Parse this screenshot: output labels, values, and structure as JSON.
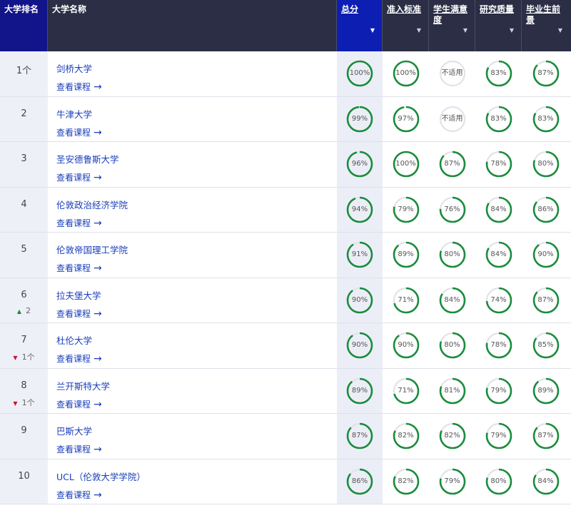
{
  "header": {
    "rank": "大学排名",
    "name": "大学名称",
    "score": "总分",
    "entry": "准入标准",
    "satisfaction": "学生满意度",
    "research": "研究质量",
    "prospects": "毕业生前景"
  },
  "colors": {
    "header_bg": "#2c2e45",
    "active_header": "#0d1fb3",
    "ring": "#1a8c3c",
    "track": "#e2e3e8",
    "link": "#1a3eb8"
  },
  "rows": [
    {
      "rank": "1个",
      "change": "",
      "dir": "",
      "name": "剑桥大学",
      "link": "查看课程",
      "score": "100%",
      "entry": "100%",
      "satisfaction": "不适用",
      "research": "83%",
      "prospects": "87%",
      "v": [
        100,
        100,
        0,
        83,
        87
      ]
    },
    {
      "rank": "2",
      "change": "",
      "dir": "",
      "name": "牛津大学",
      "link": "查看课程",
      "score": "99%",
      "entry": "97%",
      "satisfaction": "不适用",
      "research": "83%",
      "prospects": "83%",
      "v": [
        99,
        97,
        0,
        83,
        83
      ]
    },
    {
      "rank": "3",
      "change": "",
      "dir": "",
      "name": "圣安德鲁斯大学",
      "link": "查看课程",
      "score": "96%",
      "entry": "100%",
      "satisfaction": "87%",
      "research": "78%",
      "prospects": "80%",
      "v": [
        96,
        100,
        87,
        78,
        80
      ]
    },
    {
      "rank": "4",
      "change": "",
      "dir": "",
      "name": "伦敦政治经济学院",
      "link": "查看课程",
      "score": "94%",
      "entry": "79%",
      "satisfaction": "76%",
      "research": "84%",
      "prospects": "86%",
      "v": [
        94,
        79,
        76,
        84,
        86
      ]
    },
    {
      "rank": "5",
      "change": "",
      "dir": "",
      "name": "伦敦帝国理工学院",
      "link": "查看课程",
      "score": "91%",
      "entry": "89%",
      "satisfaction": "80%",
      "research": "84%",
      "prospects": "90%",
      "v": [
        91,
        89,
        80,
        84,
        90
      ]
    },
    {
      "rank": "6",
      "change": "2",
      "dir": "up",
      "name": "拉夫堡大学",
      "link": "查看课程",
      "score": "90%",
      "entry": "71%",
      "satisfaction": "84%",
      "research": "74%",
      "prospects": "87%",
      "v": [
        90,
        71,
        84,
        74,
        87
      ]
    },
    {
      "rank": "7",
      "change": "1个",
      "dir": "down",
      "name": "杜伦大学",
      "link": "查看课程",
      "score": "90%",
      "entry": "90%",
      "satisfaction": "80%",
      "research": "78%",
      "prospects": "85%",
      "v": [
        90,
        90,
        80,
        78,
        85
      ]
    },
    {
      "rank": "8",
      "change": "1个",
      "dir": "down",
      "name": "兰开斯特大学",
      "link": "查看课程",
      "score": "89%",
      "entry": "71%",
      "satisfaction": "81%",
      "research": "79%",
      "prospects": "89%",
      "v": [
        89,
        71,
        81,
        79,
        89
      ]
    },
    {
      "rank": "9",
      "change": "",
      "dir": "",
      "name": "巴斯大学",
      "link": "查看课程",
      "score": "87%",
      "entry": "82%",
      "satisfaction": "82%",
      "research": "79%",
      "prospects": "87%",
      "v": [
        87,
        82,
        82,
        79,
        87
      ]
    },
    {
      "rank": "10",
      "change": "",
      "dir": "",
      "name": "UCL（伦敦大学学院）",
      "link": "查看课程",
      "score": "86%",
      "entry": "82%",
      "satisfaction": "79%",
      "research": "80%",
      "prospects": "84%",
      "v": [
        86,
        82,
        79,
        80,
        84
      ]
    }
  ]
}
